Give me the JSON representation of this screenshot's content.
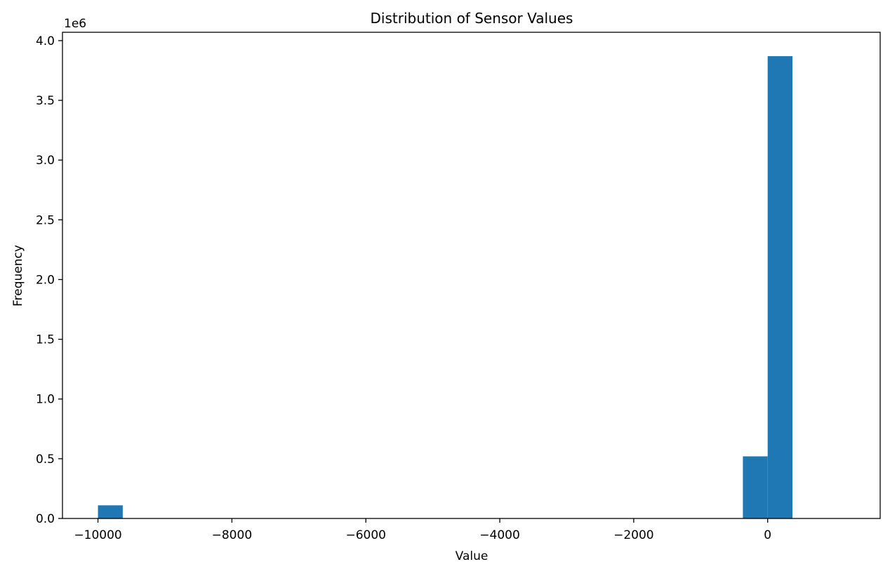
{
  "chart_data": {
    "type": "bar",
    "title": "Distribution of Sensor Values",
    "xlabel": "Value",
    "ylabel": "Frequency",
    "y_offset_label": "1e6",
    "xlim": [
      -10530,
      1680
    ],
    "ylim": [
      0,
      4.07
    ],
    "x_ticks": [
      {
        "value": -10000,
        "label": "−10000"
      },
      {
        "value": -8000,
        "label": "−8000"
      },
      {
        "value": -6000,
        "label": "−6000"
      },
      {
        "value": -4000,
        "label": "−4000"
      },
      {
        "value": -2000,
        "label": "−2000"
      },
      {
        "value": 0,
        "label": "0"
      }
    ],
    "y_ticks": [
      {
        "value": 0.0,
        "label": "0.0"
      },
      {
        "value": 0.5,
        "label": "0.5"
      },
      {
        "value": 1.0,
        "label": "1.0"
      },
      {
        "value": 1.5,
        "label": "1.5"
      },
      {
        "value": 2.0,
        "label": "2.0"
      },
      {
        "value": 2.5,
        "label": "2.5"
      },
      {
        "value": 3.0,
        "label": "3.0"
      },
      {
        "value": 3.5,
        "label": "3.5"
      },
      {
        "value": 4.0,
        "label": "4.0"
      }
    ],
    "bins": [
      {
        "x0": -10000,
        "x1": -9630,
        "value": 0.11
      },
      {
        "x0": -370,
        "x1": 0,
        "value": 0.52
      },
      {
        "x0": 0,
        "x1": 370,
        "value": 3.87
      }
    ],
    "grid": false,
    "bar_color": "#1f77b4"
  }
}
